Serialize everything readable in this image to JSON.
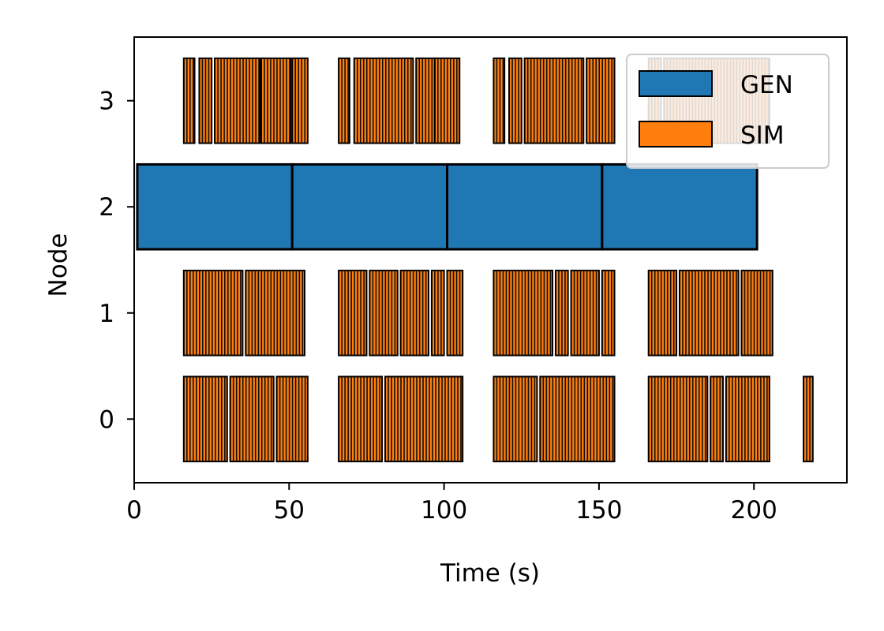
{
  "chart_data": {
    "type": "bar",
    "orientation": "horizontal-timeline",
    "title": "",
    "xlabel": "Time (s)",
    "ylabel": "Node",
    "xlim": [
      0,
      230
    ],
    "ylim": [
      -0.6,
      3.6
    ],
    "x_ticks": [
      0,
      50,
      100,
      150,
      200
    ],
    "y_ticks": [
      0,
      1,
      2,
      3
    ],
    "grid": false,
    "legend_position": "top-right",
    "bar_height": 0.8,
    "series": [
      {
        "name": "GEN",
        "color": "#1f77b4"
      },
      {
        "name": "SIM",
        "color": "#ff7f0e"
      }
    ],
    "gen_tasks": [
      {
        "node": 2,
        "start": 1,
        "end": 51
      },
      {
        "node": 2,
        "start": 51,
        "end": 101
      },
      {
        "node": 2,
        "start": 101,
        "end": 151
      },
      {
        "node": 2,
        "start": 151,
        "end": 201
      }
    ],
    "sim_blocks": [
      {
        "node": 3,
        "start": 16,
        "end": 19.5
      },
      {
        "node": 3,
        "start": 21,
        "end": 25
      },
      {
        "node": 3,
        "start": 26,
        "end": 40.5
      },
      {
        "node": 3,
        "start": 41,
        "end": 50.5
      },
      {
        "node": 3,
        "start": 51,
        "end": 56
      },
      {
        "node": 3,
        "start": 66,
        "end": 69.5
      },
      {
        "node": 3,
        "start": 71,
        "end": 90
      },
      {
        "node": 3,
        "start": 91,
        "end": 97
      },
      {
        "node": 3,
        "start": 97,
        "end": 105
      },
      {
        "node": 3,
        "start": 116,
        "end": 119.5
      },
      {
        "node": 3,
        "start": 121,
        "end": 125
      },
      {
        "node": 3,
        "start": 126,
        "end": 145
      },
      {
        "node": 3,
        "start": 146,
        "end": 155
      },
      {
        "node": 3,
        "start": 166,
        "end": 170
      },
      {
        "node": 3,
        "start": 171,
        "end": 205
      },
      {
        "node": 1,
        "start": 16,
        "end": 35
      },
      {
        "node": 1,
        "start": 36,
        "end": 55
      },
      {
        "node": 1,
        "start": 66,
        "end": 75
      },
      {
        "node": 1,
        "start": 76,
        "end": 85
      },
      {
        "node": 1,
        "start": 86,
        "end": 95
      },
      {
        "node": 1,
        "start": 96,
        "end": 100
      },
      {
        "node": 1,
        "start": 101,
        "end": 106
      },
      {
        "node": 1,
        "start": 116,
        "end": 135
      },
      {
        "node": 1,
        "start": 136,
        "end": 140
      },
      {
        "node": 1,
        "start": 141,
        "end": 150
      },
      {
        "node": 1,
        "start": 151,
        "end": 155
      },
      {
        "node": 1,
        "start": 166,
        "end": 175
      },
      {
        "node": 1,
        "start": 176,
        "end": 195
      },
      {
        "node": 1,
        "start": 196,
        "end": 206
      },
      {
        "node": 0,
        "start": 16,
        "end": 30
      },
      {
        "node": 0,
        "start": 31,
        "end": 45
      },
      {
        "node": 0,
        "start": 46,
        "end": 56
      },
      {
        "node": 0,
        "start": 66,
        "end": 80
      },
      {
        "node": 0,
        "start": 81,
        "end": 106
      },
      {
        "node": 0,
        "start": 116,
        "end": 130
      },
      {
        "node": 0,
        "start": 131,
        "end": 155
      },
      {
        "node": 0,
        "start": 166,
        "end": 185
      },
      {
        "node": 0,
        "start": 186,
        "end": 190
      },
      {
        "node": 0,
        "start": 191,
        "end": 205
      },
      {
        "node": 0,
        "start": 216,
        "end": 219
      }
    ]
  }
}
